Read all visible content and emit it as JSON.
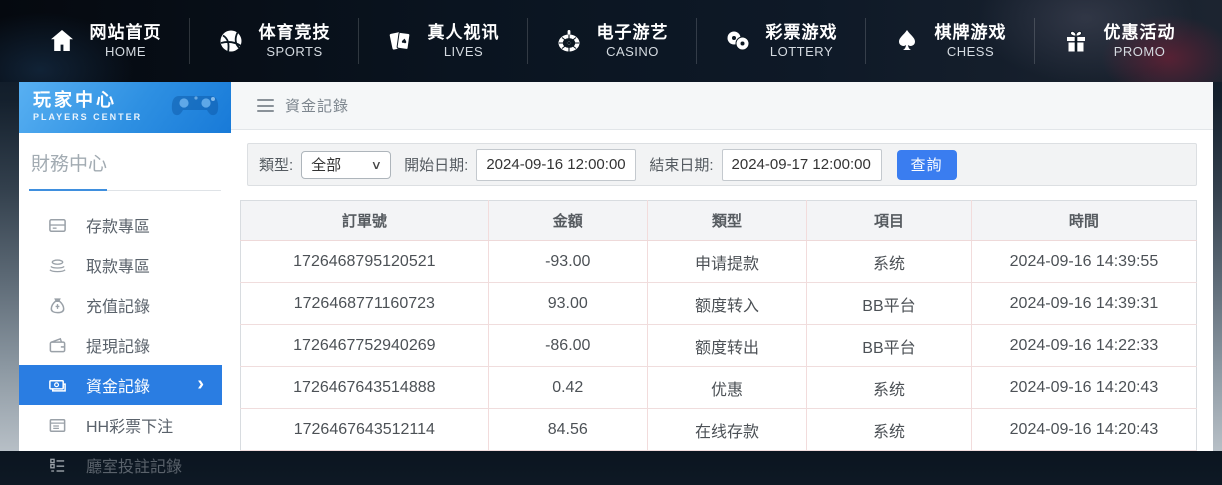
{
  "nav": {
    "items": [
      {
        "cn": "网站首页",
        "en": "HOME",
        "icon": "home-icon"
      },
      {
        "cn": "体育竞技",
        "en": "SPORTS",
        "icon": "sports-icon"
      },
      {
        "cn": "真人视讯",
        "en": "LIVES",
        "icon": "lives-icon"
      },
      {
        "cn": "电子游艺",
        "en": "CASINO",
        "icon": "casino-icon"
      },
      {
        "cn": "彩票游戏",
        "en": "LOTTERY",
        "icon": "lottery-icon"
      },
      {
        "cn": "棋牌游戏",
        "en": "CHESS",
        "icon": "chess-icon"
      },
      {
        "cn": "优惠活动",
        "en": "PROMO",
        "icon": "promo-icon"
      }
    ]
  },
  "sidebar": {
    "title_cn": "玩家中心",
    "title_en": "PLAYERS CENTER",
    "section": "財務中心",
    "items": [
      {
        "label": "存款專區",
        "icon": "deposit-icon",
        "active": false
      },
      {
        "label": "取款專區",
        "icon": "withdraw-icon",
        "active": false
      },
      {
        "label": "充值記錄",
        "icon": "recharge-icon",
        "active": false
      },
      {
        "label": "提現記錄",
        "icon": "cashout-icon",
        "active": false
      },
      {
        "label": "資金記錄",
        "icon": "funds-icon",
        "active": true
      },
      {
        "label": "HH彩票下注",
        "icon": "lottery-bet-icon",
        "active": false
      },
      {
        "label": "廳室投註記錄",
        "icon": "room-bet-icon",
        "active": false
      }
    ]
  },
  "breadcrumb": {
    "title": "資金記錄"
  },
  "filters": {
    "type_label": "類型:",
    "type_value": "全部",
    "start_label": "開始日期:",
    "start_value": "2024-09-16 12:00:00",
    "end_label": "結束日期:",
    "end_value": "2024-09-17 12:00:00",
    "search_label": "查詢"
  },
  "table": {
    "headers": [
      "訂單號",
      "金額",
      "類型",
      "項目",
      "時間"
    ],
    "rows": [
      [
        "1726468795120521",
        "-93.00",
        "申请提款",
        "系统",
        "2024-09-16 14:39:55"
      ],
      [
        "1726468771160723",
        "93.00",
        "额度转入",
        "BB平台",
        "2024-09-16 14:39:31"
      ],
      [
        "1726467752940269",
        "-86.00",
        "额度转出",
        "BB平台",
        "2024-09-16 14:22:33"
      ],
      [
        "1726467643514888",
        "0.42",
        "优惠",
        "系统",
        "2024-09-16 14:20:43"
      ],
      [
        "1726467643512114",
        "84.56",
        "在线存款",
        "系统",
        "2024-09-16 14:20:43"
      ]
    ]
  },
  "colors": {
    "accent_blue": "#2a7de2",
    "button_blue": "#3a7df0",
    "sidebar_header_blue": "#2e90e2",
    "nav_bg_dark": "#0a1420",
    "table_divider_pink": "#f2dcdc"
  }
}
